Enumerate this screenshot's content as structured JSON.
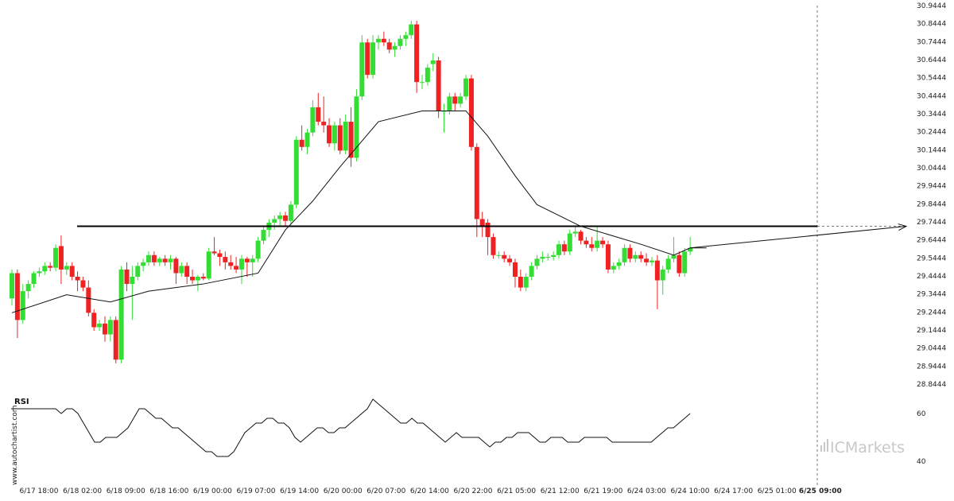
{
  "chart_data": {
    "type": "candlestick",
    "price_axis": {
      "ticks": [
        "30.9444",
        "30.8444",
        "30.7444",
        "30.6444",
        "30.5444",
        "30.4444",
        "30.3444",
        "30.2444",
        "30.1444",
        "30.0444",
        "29.9444",
        "29.8444",
        "29.7444",
        "29.6444",
        "29.5444",
        "29.4444",
        "29.3444",
        "29.2444",
        "29.1444",
        "29.0444",
        "28.9444",
        "28.8444"
      ],
      "ylim": [
        28.8444,
        30.9444
      ]
    },
    "time_axis": {
      "ticks": [
        "6/17 18:00",
        "6/18 02:00",
        "6/18 09:00",
        "6/18 16:00",
        "6/19 00:00",
        "6/19 07:00",
        "6/19 14:00",
        "6/20 00:00",
        "6/20 07:00",
        "6/20 14:00",
        "6/20 22:00",
        "6/21 05:00",
        "6/21 12:00",
        "6/21 19:00",
        "6/24 03:00",
        "6/24 10:00",
        "6/24 17:00",
        "6/25 01:00",
        "6/25 09:00"
      ],
      "current": "6/25 09:00"
    },
    "resistance_level": 29.72,
    "candles": [
      {
        "o": 29.32,
        "h": 29.48,
        "l": 29.28,
        "c": 29.46
      },
      {
        "o": 29.46,
        "h": 29.48,
        "l": 29.1,
        "c": 29.2
      },
      {
        "o": 29.2,
        "h": 29.4,
        "l": 29.18,
        "c": 29.36
      },
      {
        "o": 29.36,
        "h": 29.42,
        "l": 29.32,
        "c": 29.4
      },
      {
        "o": 29.4,
        "h": 29.47,
        "l": 29.38,
        "c": 29.46
      },
      {
        "o": 29.46,
        "h": 29.49,
        "l": 29.44,
        "c": 29.47
      },
      {
        "o": 29.47,
        "h": 29.52,
        "l": 29.45,
        "c": 29.5
      },
      {
        "o": 29.5,
        "h": 29.52,
        "l": 29.47,
        "c": 29.49
      },
      {
        "o": 29.49,
        "h": 29.62,
        "l": 29.47,
        "c": 29.6
      },
      {
        "o": 29.61,
        "h": 29.67,
        "l": 29.4,
        "c": 29.48
      },
      {
        "o": 29.48,
        "h": 29.52,
        "l": 29.45,
        "c": 29.5
      },
      {
        "o": 29.5,
        "h": 29.52,
        "l": 29.42,
        "c": 29.44
      },
      {
        "o": 29.44,
        "h": 29.47,
        "l": 29.36,
        "c": 29.42
      },
      {
        "o": 29.42,
        "h": 29.44,
        "l": 29.36,
        "c": 29.38
      },
      {
        "o": 29.38,
        "h": 29.42,
        "l": 29.22,
        "c": 29.24
      },
      {
        "o": 29.24,
        "h": 29.26,
        "l": 29.14,
        "c": 29.16
      },
      {
        "o": 29.16,
        "h": 29.2,
        "l": 29.14,
        "c": 29.18
      },
      {
        "o": 29.18,
        "h": 29.22,
        "l": 29.08,
        "c": 29.12
      },
      {
        "o": 29.12,
        "h": 29.22,
        "l": 29.08,
        "c": 29.2
      },
      {
        "o": 29.2,
        "h": 29.22,
        "l": 28.96,
        "c": 28.98
      },
      {
        "o": 28.98,
        "h": 29.5,
        "l": 28.96,
        "c": 29.48
      },
      {
        "o": 29.48,
        "h": 29.52,
        "l": 29.36,
        "c": 29.4
      },
      {
        "o": 29.4,
        "h": 29.5,
        "l": 29.2,
        "c": 29.44
      },
      {
        "o": 29.44,
        "h": 29.52,
        "l": 29.42,
        "c": 29.5
      },
      {
        "o": 29.5,
        "h": 29.54,
        "l": 29.47,
        "c": 29.52
      },
      {
        "o": 29.52,
        "h": 29.58,
        "l": 29.5,
        "c": 29.56
      },
      {
        "o": 29.56,
        "h": 29.58,
        "l": 29.5,
        "c": 29.52
      },
      {
        "o": 29.52,
        "h": 29.55,
        "l": 29.5,
        "c": 29.54
      },
      {
        "o": 29.54,
        "h": 29.56,
        "l": 29.5,
        "c": 29.52
      },
      {
        "o": 29.52,
        "h": 29.56,
        "l": 29.48,
        "c": 29.54
      },
      {
        "o": 29.54,
        "h": 29.55,
        "l": 29.4,
        "c": 29.46
      },
      {
        "o": 29.46,
        "h": 29.52,
        "l": 29.44,
        "c": 29.5
      },
      {
        "o": 29.5,
        "h": 29.52,
        "l": 29.4,
        "c": 29.44
      },
      {
        "o": 29.44,
        "h": 29.48,
        "l": 29.4,
        "c": 29.42
      },
      {
        "o": 29.42,
        "h": 29.45,
        "l": 29.36,
        "c": 29.44
      },
      {
        "o": 29.44,
        "h": 29.46,
        "l": 29.42,
        "c": 29.43
      },
      {
        "o": 29.43,
        "h": 29.6,
        "l": 29.42,
        "c": 29.58
      },
      {
        "o": 29.58,
        "h": 29.66,
        "l": 29.56,
        "c": 29.57
      },
      {
        "o": 29.57,
        "h": 29.59,
        "l": 29.5,
        "c": 29.55
      },
      {
        "o": 29.55,
        "h": 29.58,
        "l": 29.48,
        "c": 29.52
      },
      {
        "o": 29.52,
        "h": 29.56,
        "l": 29.48,
        "c": 29.5
      },
      {
        "o": 29.5,
        "h": 29.55,
        "l": 29.46,
        "c": 29.48
      },
      {
        "o": 29.48,
        "h": 29.56,
        "l": 29.4,
        "c": 29.54
      },
      {
        "o": 29.54,
        "h": 29.55,
        "l": 29.44,
        "c": 29.52
      },
      {
        "o": 29.52,
        "h": 29.56,
        "l": 29.44,
        "c": 29.54
      },
      {
        "o": 29.54,
        "h": 29.66,
        "l": 29.52,
        "c": 29.64
      },
      {
        "o": 29.64,
        "h": 29.72,
        "l": 29.62,
        "c": 29.7
      },
      {
        "o": 29.7,
        "h": 29.76,
        "l": 29.66,
        "c": 29.74
      },
      {
        "o": 29.74,
        "h": 29.78,
        "l": 29.7,
        "c": 29.76
      },
      {
        "o": 29.76,
        "h": 29.8,
        "l": 29.72,
        "c": 29.78
      },
      {
        "o": 29.78,
        "h": 29.8,
        "l": 29.72,
        "c": 29.75
      },
      {
        "o": 29.75,
        "h": 29.86,
        "l": 29.73,
        "c": 29.84
      },
      {
        "o": 29.84,
        "h": 30.22,
        "l": 29.82,
        "c": 30.2
      },
      {
        "o": 30.2,
        "h": 30.28,
        "l": 30.14,
        "c": 30.16
      },
      {
        "o": 30.16,
        "h": 30.26,
        "l": 30.12,
        "c": 30.24
      },
      {
        "o": 30.24,
        "h": 30.42,
        "l": 30.22,
        "c": 30.38
      },
      {
        "o": 30.38,
        "h": 30.46,
        "l": 30.28,
        "c": 30.3
      },
      {
        "o": 30.3,
        "h": 30.44,
        "l": 30.24,
        "c": 30.28
      },
      {
        "o": 30.28,
        "h": 30.32,
        "l": 30.16,
        "c": 30.18
      },
      {
        "o": 30.18,
        "h": 30.3,
        "l": 30.14,
        "c": 30.28
      },
      {
        "o": 30.28,
        "h": 30.32,
        "l": 30.12,
        "c": 30.14
      },
      {
        "o": 30.14,
        "h": 30.34,
        "l": 30.12,
        "c": 30.3
      },
      {
        "o": 30.3,
        "h": 30.38,
        "l": 30.05,
        "c": 30.1
      },
      {
        "o": 30.1,
        "h": 30.48,
        "l": 30.08,
        "c": 30.44
      },
      {
        "o": 30.44,
        "h": 30.78,
        "l": 30.42,
        "c": 30.74
      },
      {
        "o": 30.74,
        "h": 30.76,
        "l": 30.54,
        "c": 30.56
      },
      {
        "o": 30.56,
        "h": 30.78,
        "l": 30.54,
        "c": 30.74
      },
      {
        "o": 30.74,
        "h": 30.78,
        "l": 30.7,
        "c": 30.76
      },
      {
        "o": 30.76,
        "h": 30.8,
        "l": 30.72,
        "c": 30.74
      },
      {
        "o": 30.74,
        "h": 30.76,
        "l": 30.68,
        "c": 30.7
      },
      {
        "o": 30.7,
        "h": 30.74,
        "l": 30.66,
        "c": 30.72
      },
      {
        "o": 30.72,
        "h": 30.78,
        "l": 30.7,
        "c": 30.76
      },
      {
        "o": 30.76,
        "h": 30.8,
        "l": 30.72,
        "c": 30.78
      },
      {
        "o": 30.78,
        "h": 30.86,
        "l": 30.76,
        "c": 30.84
      },
      {
        "o": 30.84,
        "h": 30.86,
        "l": 30.46,
        "c": 30.52
      },
      {
        "o": 30.52,
        "h": 30.56,
        "l": 30.48,
        "c": 30.52
      },
      {
        "o": 30.52,
        "h": 30.62,
        "l": 30.5,
        "c": 30.6
      },
      {
        "o": 30.62,
        "h": 30.68,
        "l": 30.58,
        "c": 30.64
      },
      {
        "o": 30.64,
        "h": 30.66,
        "l": 30.32,
        "c": 30.36
      },
      {
        "o": 30.36,
        "h": 30.4,
        "l": 30.24,
        "c": 30.36
      },
      {
        "o": 30.36,
        "h": 30.46,
        "l": 30.34,
        "c": 30.44
      },
      {
        "o": 30.44,
        "h": 30.46,
        "l": 30.36,
        "c": 30.4
      },
      {
        "o": 30.4,
        "h": 30.46,
        "l": 30.38,
        "c": 30.44
      },
      {
        "o": 30.44,
        "h": 30.56,
        "l": 30.42,
        "c": 30.54
      },
      {
        "o": 30.54,
        "h": 30.56,
        "l": 30.14,
        "c": 30.16
      },
      {
        "o": 30.16,
        "h": 30.18,
        "l": 29.66,
        "c": 29.76
      },
      {
        "o": 29.76,
        "h": 29.8,
        "l": 29.66,
        "c": 29.72
      },
      {
        "o": 29.74,
        "h": 29.76,
        "l": 29.56,
        "c": 29.66
      },
      {
        "o": 29.66,
        "h": 29.68,
        "l": 29.54,
        "c": 29.56
      },
      {
        "o": 29.56,
        "h": 29.58,
        "l": 29.54,
        "c": 29.56
      },
      {
        "o": 29.56,
        "h": 29.58,
        "l": 29.52,
        "c": 29.54
      },
      {
        "o": 29.54,
        "h": 29.56,
        "l": 29.5,
        "c": 29.52
      },
      {
        "o": 29.52,
        "h": 29.54,
        "l": 29.38,
        "c": 29.44
      },
      {
        "o": 29.44,
        "h": 29.48,
        "l": 29.36,
        "c": 29.38
      },
      {
        "o": 29.38,
        "h": 29.46,
        "l": 29.36,
        "c": 29.44
      },
      {
        "o": 29.44,
        "h": 29.52,
        "l": 29.42,
        "c": 29.5
      },
      {
        "o": 29.5,
        "h": 29.56,
        "l": 29.48,
        "c": 29.54
      },
      {
        "o": 29.54,
        "h": 29.58,
        "l": 29.52,
        "c": 29.55
      },
      {
        "o": 29.55,
        "h": 29.57,
        "l": 29.53,
        "c": 29.55
      },
      {
        "o": 29.55,
        "h": 29.58,
        "l": 29.53,
        "c": 29.56
      },
      {
        "o": 29.56,
        "h": 29.64,
        "l": 29.54,
        "c": 29.62
      },
      {
        "o": 29.62,
        "h": 29.64,
        "l": 29.56,
        "c": 29.58
      },
      {
        "o": 29.58,
        "h": 29.7,
        "l": 29.56,
        "c": 29.68
      },
      {
        "o": 29.68,
        "h": 29.72,
        "l": 29.66,
        "c": 29.69
      },
      {
        "o": 29.69,
        "h": 29.7,
        "l": 29.62,
        "c": 29.64
      },
      {
        "o": 29.64,
        "h": 29.66,
        "l": 29.6,
        "c": 29.62
      },
      {
        "o": 29.62,
        "h": 29.66,
        "l": 29.58,
        "c": 29.6
      },
      {
        "o": 29.6,
        "h": 29.72,
        "l": 29.58,
        "c": 29.64
      },
      {
        "o": 29.64,
        "h": 29.66,
        "l": 29.6,
        "c": 29.62
      },
      {
        "o": 29.62,
        "h": 29.64,
        "l": 29.46,
        "c": 29.48
      },
      {
        "o": 29.48,
        "h": 29.52,
        "l": 29.46,
        "c": 29.5
      },
      {
        "o": 29.5,
        "h": 29.54,
        "l": 29.48,
        "c": 29.52
      },
      {
        "o": 29.52,
        "h": 29.62,
        "l": 29.5,
        "c": 29.6
      },
      {
        "o": 29.6,
        "h": 29.62,
        "l": 29.52,
        "c": 29.54
      },
      {
        "o": 29.54,
        "h": 29.58,
        "l": 29.52,
        "c": 29.56
      },
      {
        "o": 29.56,
        "h": 29.58,
        "l": 29.52,
        "c": 29.54
      },
      {
        "o": 29.54,
        "h": 29.57,
        "l": 29.5,
        "c": 29.52
      },
      {
        "o": 29.52,
        "h": 29.55,
        "l": 29.5,
        "c": 29.53
      },
      {
        "o": 29.53,
        "h": 29.56,
        "l": 29.26,
        "c": 29.42
      },
      {
        "o": 29.42,
        "h": 29.5,
        "l": 29.34,
        "c": 29.48
      },
      {
        "o": 29.48,
        "h": 29.56,
        "l": 29.46,
        "c": 29.54
      },
      {
        "o": 29.54,
        "h": 29.66,
        "l": 29.52,
        "c": 29.56
      },
      {
        "o": 29.56,
        "h": 29.58,
        "l": 29.44,
        "c": 29.46
      },
      {
        "o": 29.46,
        "h": 29.6,
        "l": 29.44,
        "c": 29.58
      },
      {
        "o": 29.58,
        "h": 29.66,
        "l": 29.56,
        "c": 29.6
      }
    ],
    "moving_average": [
      [
        0,
        29.24
      ],
      [
        10,
        29.34
      ],
      [
        18,
        29.3
      ],
      [
        25,
        29.36
      ],
      [
        35,
        29.4
      ],
      [
        45,
        29.46
      ],
      [
        50,
        29.7
      ],
      [
        55,
        29.86
      ],
      [
        60,
        30.05
      ],
      [
        67,
        30.3
      ],
      [
        75,
        30.36
      ],
      [
        83,
        30.36
      ],
      [
        87,
        30.22
      ],
      [
        92,
        30.0
      ],
      [
        96,
        29.84
      ],
      [
        104,
        29.72
      ],
      [
        115,
        29.62
      ],
      [
        121,
        29.56
      ],
      [
        124,
        29.6
      ],
      [
        127,
        29.6
      ]
    ],
    "rsi": {
      "title": "RSI",
      "ticks": [
        60,
        40
      ],
      "ylim": [
        30,
        70
      ],
      "values": [
        62,
        62,
        62,
        62,
        62,
        62,
        62,
        62,
        62,
        60,
        62,
        62,
        60,
        56,
        52,
        48,
        48,
        50,
        50,
        50,
        52,
        54,
        58,
        62,
        62,
        60,
        58,
        58,
        56,
        54,
        54,
        52,
        50,
        48,
        46,
        44,
        44,
        42,
        42,
        42,
        44,
        48,
        52,
        54,
        56,
        56,
        58,
        58,
        56,
        56,
        54,
        50,
        48,
        50,
        52,
        54,
        54,
        52,
        52,
        54,
        54,
        56,
        58,
        60,
        62,
        66,
        64,
        62,
        60,
        58,
        56,
        56,
        58,
        56,
        56,
        54,
        52,
        50,
        48,
        50,
        52,
        50,
        50,
        50,
        50,
        48,
        46,
        48,
        48,
        50,
        50,
        52,
        52,
        52,
        50,
        48,
        48,
        50,
        50,
        50,
        48,
        48,
        48,
        50,
        50,
        50,
        50,
        50,
        48,
        48,
        48,
        48,
        48,
        48,
        48,
        48,
        50,
        52,
        54,
        54,
        56,
        58,
        60
      ]
    },
    "arrow_end_value": 29.72
  },
  "watermark": "www.autochartist.com",
  "brand": {
    "name": "ICMarkets",
    "color": "#c8c8c8"
  },
  "colors": {
    "bull": "#33dd33",
    "bear": "#ee2222",
    "line": "#111111",
    "grid": "#bbbbbb"
  }
}
